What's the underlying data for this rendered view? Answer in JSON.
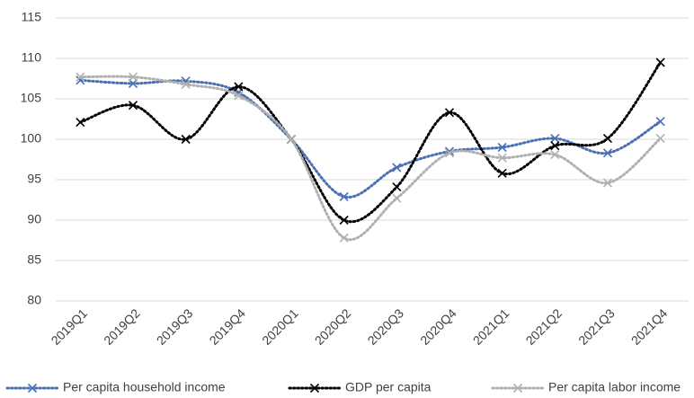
{
  "chart_data": {
    "type": "line",
    "categories": [
      "2019Q1",
      "2019Q2",
      "2019Q3",
      "2019Q4",
      "2020Q1",
      "2020Q2",
      "2020Q3",
      "2020Q4",
      "2021Q1",
      "2021Q2",
      "2021Q3",
      "2021Q4"
    ],
    "series": [
      {
        "name": "Per capita household income",
        "color": "#4a6fb5",
        "values": [
          107.3,
          106.9,
          107.2,
          105.8,
          100,
          92.9,
          96.5,
          98.5,
          99.0,
          100.1,
          98.3,
          102.2
        ]
      },
      {
        "name": "GDP per capita",
        "color": "#000000",
        "values": [
          102.1,
          104.2,
          100.0,
          106.5,
          100,
          90.0,
          94.1,
          103.3,
          95.8,
          99.2,
          100.1,
          109.5
        ]
      },
      {
        "name": "Per capita labor income",
        "color": "#b0b0b0",
        "values": [
          107.7,
          107.7,
          106.8,
          105.4,
          100,
          87.8,
          92.7,
          98.3,
          97.7,
          98.1,
          94.6,
          100.1
        ]
      }
    ],
    "ylim": [
      80,
      115
    ],
    "yticks": [
      80,
      85,
      90,
      95,
      100,
      105,
      110,
      115
    ],
    "grid": true,
    "legend": "bottom"
  }
}
